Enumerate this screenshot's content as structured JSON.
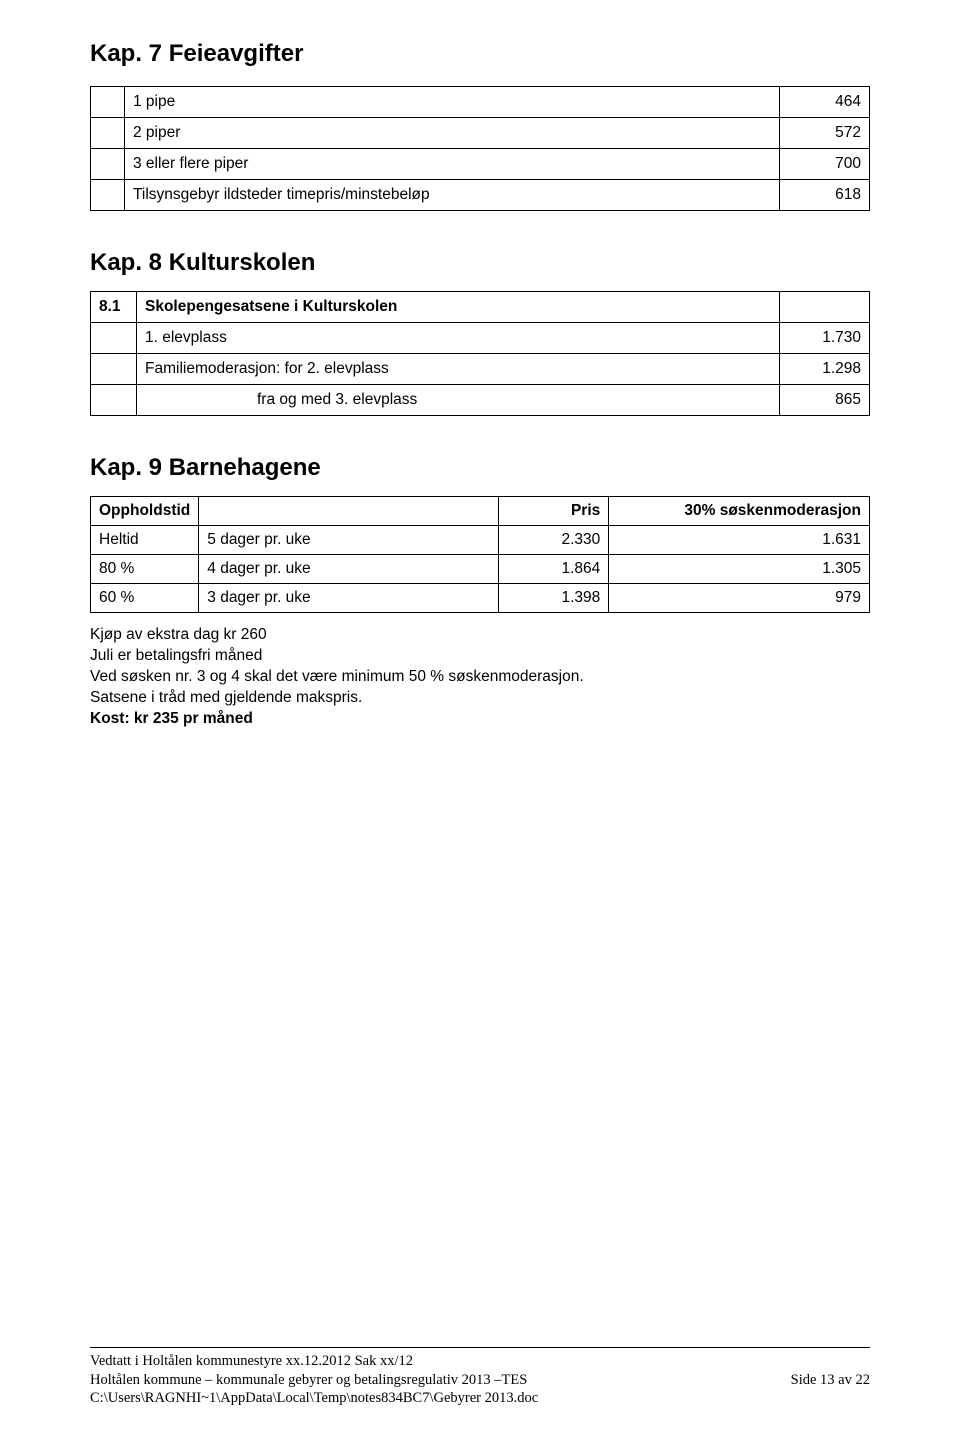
{
  "kap7": {
    "title": "Kap. 7 Feieavgifter",
    "rows": [
      {
        "label": "1 pipe",
        "value": "464"
      },
      {
        "label": "2 piper",
        "value": "572"
      },
      {
        "label": "3 eller flere piper",
        "value": "700"
      },
      {
        "label": "Tilsynsgebyr ildsteder timepris/minstebeløp",
        "value": "618"
      }
    ]
  },
  "kap8": {
    "title": "Kap. 8 Kulturskolen",
    "header": {
      "num": "8.1",
      "text": "Skolepengesatsene i Kulturskolen"
    },
    "rows": [
      {
        "label": "1. elevplass",
        "value": "1.730",
        "indent": false
      },
      {
        "label": "Familiemoderasjon:  for 2. elevplass",
        "value": "1.298",
        "indent": false
      },
      {
        "label": "fra og med 3. elevplass",
        "value": "865",
        "indent": true
      }
    ]
  },
  "kap9": {
    "title": "Kap. 9 Barnehagene",
    "columns": [
      "Oppholdstid",
      "",
      "Pris",
      "30% søskenmoderasjon"
    ],
    "rows": [
      [
        "Heltid",
        "5 dager pr. uke",
        "2.330",
        "1.631"
      ],
      [
        "80 %",
        "4 dager pr. uke",
        "1.864",
        "1.305"
      ],
      [
        "60 %",
        "3 dager pr. uke",
        "1.398",
        "979"
      ]
    ],
    "notes": {
      "l1": "Kjøp av ekstra dag kr 260",
      "l2": "Juli er betalingsfri måned",
      "l3": "Ved søsken nr. 3 og 4 skal det være minimum 50 % søskenmoderasjon.",
      "l4": "Satsene i tråd med gjeldende makspris.",
      "l5": "Kost: kr 235 pr måned"
    }
  },
  "footer": {
    "l1": "Vedtatt i Holtålen kommunestyre xx.12.2012 Sak  xx/12",
    "l2_left": "Holtålen kommune – kommunale gebyrer og betalingsregulativ 2013 –TES",
    "l2_right": "Side 13 av 22",
    "l3": "C:\\Users\\RAGNHI~1\\AppData\\Local\\Temp\\notes834BC7\\Gebyrer 2013.doc"
  }
}
